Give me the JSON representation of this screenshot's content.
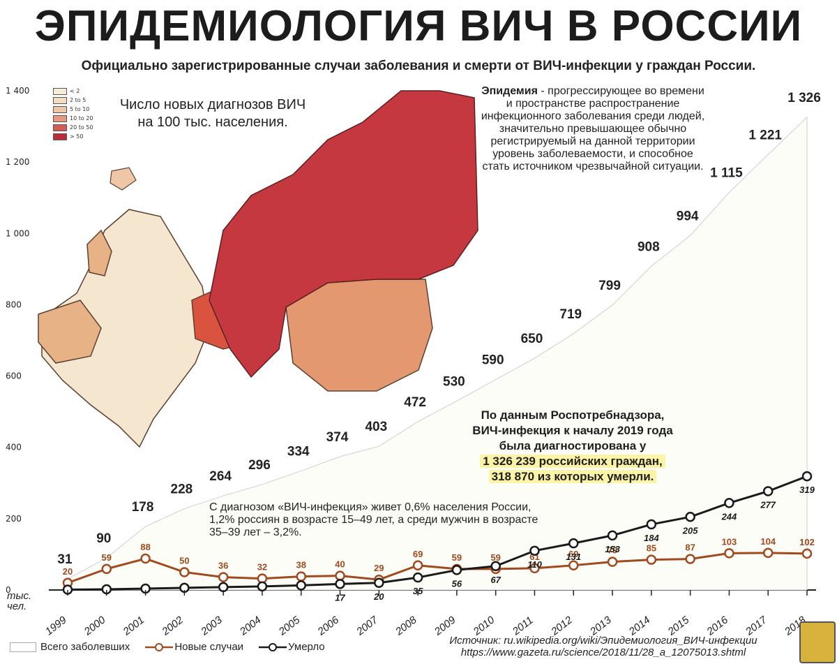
{
  "title": "ЭПИДЕМИОЛОГИЯ ВИЧ В РОССИИ",
  "subtitle": "Официально зарегистрированные случаи заболевания и смерти от ВИЧ-инфекции у граждан России.",
  "map": {
    "title_line1": "Число новых диагнозов ВИЧ",
    "title_line2": "на 100 тыс. населения.",
    "legend": [
      {
        "label": "< 2",
        "color": "#f6ecd8"
      },
      {
        "label": "2 to 5",
        "color": "#f3dcc0"
      },
      {
        "label": "5 to 10",
        "color": "#f0c7a6"
      },
      {
        "label": "10 to 20",
        "color": "#e69a7d"
      },
      {
        "label": "20 to 50",
        "color": "#d45b55"
      },
      {
        "label": "> 50",
        "color": "#b82d3a"
      }
    ]
  },
  "epidemic_text": {
    "term": "Эпидемия",
    "line1": " - прогрессирующее во",
    "rest": "времени и пространстве распространение инфекционного заболевания среди людей, значительно превышающее обычно регистрируемый на данной территории уровень заболеваемости, и способное стать источником чрезвычайной ситуации."
  },
  "rospotreb": {
    "line1": "По данным Роспотребнадзора,",
    "line2": "ВИЧ-инфекция к началу 2019 года",
    "line3": "была диагностирована у",
    "line4": "1 326 239 российских граждан,",
    "line5": "318 870 из которых умерли."
  },
  "living_text": "С диагнозом «ВИЧ-инфекция» живет 0,6% населения России, 1,2% россиян в возрасте 15–49 лет, а среди мужчин в возрасте 35–39 лет – 3,2%.",
  "source": {
    "line1": "Источник: ru.wikipedia.org/wiki/Эпидемиология_ВИЧ-инфекции",
    "line2": "https://www.gazeta.ru/science/2018/11/28_a_12075013.shtml"
  },
  "legend": {
    "total": "Всего заболевших",
    "new": "Новые случаи",
    "died": "Умерло"
  },
  "unit_label_line1": "тыс.",
  "unit_label_line2": "чел.",
  "colors": {
    "total": "#fdfdf8",
    "new": "#a04a1e",
    "died": "#1a1a1a",
    "ribbon": "#cf3a3a",
    "map_russia": "#c6383f"
  },
  "chart_data": {
    "type": "area",
    "title": "ЭПИДЕМИОЛОГИЯ ВИЧ В РОССИИ",
    "xlabel": "",
    "ylabel": "тыс. чел.",
    "ylim": [
      0,
      1400
    ],
    "yticks": [
      0,
      200,
      400,
      600,
      800,
      1000,
      1200,
      1400
    ],
    "ytick_labels": [
      "0",
      "200",
      "400",
      "600",
      "800",
      "1 000",
      "1 200",
      "1 400"
    ],
    "categories": [
      "1999",
      "2000",
      "2001",
      "2002",
      "2003",
      "2004",
      "2005",
      "2006",
      "2007",
      "2008",
      "2009",
      "2010",
      "2011",
      "2012",
      "2013",
      "2014",
      "2015",
      "2016",
      "2017",
      "2018"
    ],
    "series": [
      {
        "name": "Всего заболевших",
        "values": [
          31,
          90,
          178,
          228,
          264,
          296,
          334,
          374,
          403,
          472,
          530,
          590,
          650,
          719,
          799,
          908,
          994,
          1115,
          1221,
          1326
        ],
        "labels": [
          "31",
          "90",
          "178",
          "228",
          "264",
          "296",
          "334",
          "374",
          "403",
          "472",
          "530",
          "590",
          "650",
          "719",
          "799",
          "908",
          "994",
          "1 115",
          "1 221",
          "1 326"
        ]
      },
      {
        "name": "Новые случаи",
        "values": [
          20,
          59,
          88,
          50,
          36,
          32,
          38,
          40,
          29,
          69,
          59,
          59,
          61,
          69,
          79,
          85,
          87,
          103,
          104,
          102
        ],
        "labels": [
          "20",
          "59",
          "88",
          "50",
          "36",
          "32",
          "38",
          "40",
          "29",
          "69",
          "59",
          "59",
          "61",
          "69",
          "79",
          "85",
          "87",
          "103",
          "104",
          "102"
        ]
      },
      {
        "name": "Умерло",
        "values": [
          1,
          2,
          4,
          6,
          8,
          10,
          13,
          17,
          20,
          35,
          56,
          67,
          110,
          131,
          153,
          184,
          205,
          244,
          277,
          319
        ],
        "labels": [
          "",
          "",
          "",
          "",
          "",
          "",
          "",
          "17",
          "20",
          "35",
          "56",
          "67",
          "110",
          "131",
          "153",
          "184",
          "205",
          "244",
          "277",
          "319"
        ]
      }
    ]
  }
}
